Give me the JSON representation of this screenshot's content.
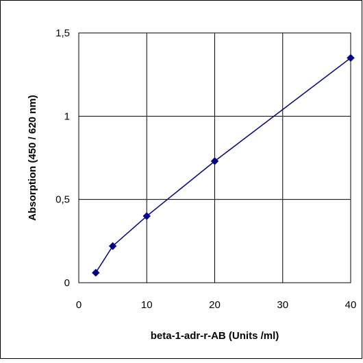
{
  "chart_data": {
    "type": "line",
    "title": "",
    "xlabel": "beta-1-adr-r-AB (Units /ml)",
    "ylabel": "Absorption (450 / 620 nm)",
    "x_ticks": [
      "0",
      "10",
      "20",
      "30",
      "40"
    ],
    "x_tick_positions": [
      0,
      10,
      20,
      30,
      40
    ],
    "y_ticks": [
      "0",
      "0,5",
      "1",
      "1,5"
    ],
    "y_tick_values": [
      0,
      0.5,
      1,
      1.5
    ],
    "ylim": [
      0,
      1.5
    ],
    "grid": true,
    "legend": "none",
    "series": [
      {
        "x": [
          2.5,
          5,
          10,
          20,
          40
        ],
        "y": [
          0.06,
          0.22,
          0.4,
          0.73,
          1.35
        ],
        "color": "#000080",
        "marker": "diamond"
      }
    ]
  }
}
